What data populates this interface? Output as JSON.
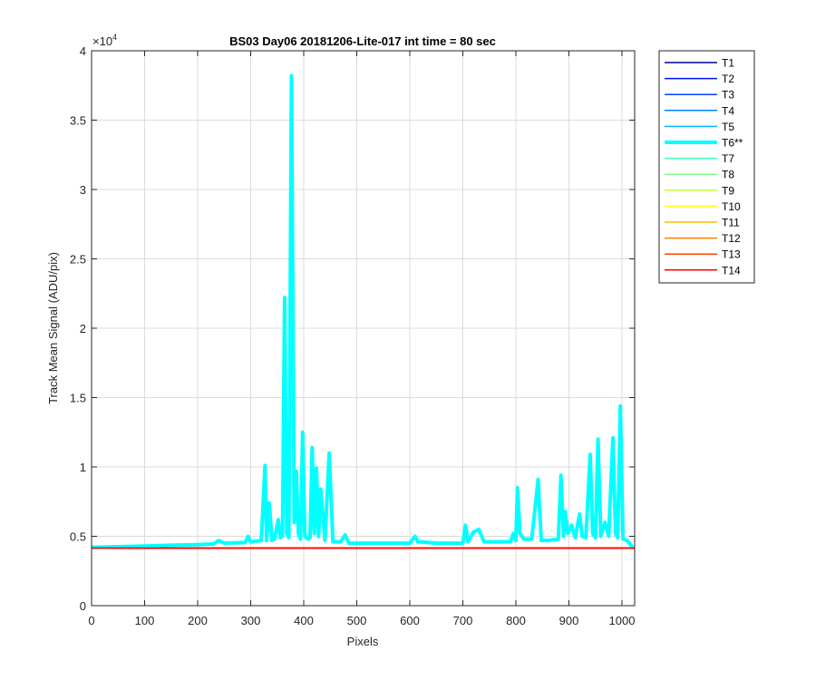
{
  "chart_data": {
    "type": "line",
    "title": "BS03 Day06 20181206-Lite-017 int time = 80 sec",
    "xlabel": "Pixels",
    "ylabel": "Track Mean Signal (ADU/pix)",
    "y_exponent_base": "×10",
    "y_exponent_power": "4",
    "xlim": [
      0,
      1024
    ],
    "ylim": [
      0,
      40000
    ],
    "x_ticks": [
      0,
      100,
      200,
      300,
      400,
      500,
      600,
      700,
      800,
      900,
      1000
    ],
    "y_ticks": [
      0,
      5000,
      10000,
      15000,
      20000,
      25000,
      30000,
      35000,
      40000
    ],
    "x_tick_labels": [
      "0",
      "100",
      "200",
      "300",
      "400",
      "500",
      "600",
      "700",
      "800",
      "900",
      "1000"
    ],
    "y_tick_labels": [
      "0",
      "0.5",
      "1",
      "1.5",
      "2",
      "2.5",
      "3",
      "3.5",
      "4"
    ],
    "grid": true,
    "legend_position": "outside-top-right",
    "baseline_value": 4150,
    "series": [
      {
        "name": "T1",
        "color": "#00008f"
      },
      {
        "name": "T2",
        "color": "#0010ff"
      },
      {
        "name": "T3",
        "color": "#0040ff"
      },
      {
        "name": "T4",
        "color": "#0080ff"
      },
      {
        "name": "T5",
        "color": "#00bfff"
      },
      {
        "name": "T6**",
        "color": "#00ffff",
        "highlighted": true,
        "x": [
          0,
          50,
          100,
          150,
          200,
          230,
          240,
          250,
          290,
          295,
          300,
          320,
          327,
          330,
          335,
          340,
          345,
          352,
          356,
          360,
          364,
          368,
          372,
          377,
          382,
          386,
          390,
          394,
          398,
          402,
          408,
          412,
          416,
          420,
          424,
          428,
          432,
          440,
          448,
          455,
          470,
          478,
          485,
          500,
          550,
          600,
          610,
          615,
          620,
          650,
          700,
          705,
          710,
          720,
          730,
          740,
          760,
          790,
          795,
          800,
          803,
          808,
          815,
          830,
          842,
          848,
          860,
          880,
          885,
          890,
          893,
          898,
          905,
          912,
          920,
          925,
          932,
          940,
          945,
          950,
          955,
          960,
          968,
          975,
          983,
          988,
          992,
          997,
          1002,
          1010,
          1020
        ],
        "y": [
          4200,
          4250,
          4300,
          4350,
          4400,
          4450,
          4700,
          4500,
          4550,
          5000,
          4600,
          4700,
          10100,
          4700,
          7400,
          4700,
          4800,
          6200,
          4900,
          5000,
          22200,
          5200,
          4900,
          38200,
          6000,
          9700,
          5200,
          4800,
          12500,
          5000,
          4800,
          4900,
          11400,
          5200,
          9900,
          5000,
          8400,
          4700,
          11000,
          4600,
          4600,
          5100,
          4500,
          4500,
          4500,
          4500,
          5000,
          4600,
          4600,
          4500,
          4500,
          5800,
          4600,
          5300,
          5500,
          4600,
          4600,
          4600,
          5200,
          4700,
          8500,
          5200,
          4800,
          4800,
          9100,
          4700,
          4700,
          4800,
          9400,
          5000,
          6800,
          5200,
          5800,
          4900,
          6600,
          5000,
          4900,
          10900,
          5200,
          4900,
          12000,
          5000,
          6000,
          5000,
          12100,
          5200,
          4900,
          14400,
          4800,
          4700,
          4200
        ]
      },
      {
        "name": "T7",
        "color": "#40ffbf"
      },
      {
        "name": "T8",
        "color": "#80ff80"
      },
      {
        "name": "T9",
        "color": "#bfff40"
      },
      {
        "name": "T10",
        "color": "#ffff00"
      },
      {
        "name": "T11",
        "color": "#ffbf00"
      },
      {
        "name": "T12",
        "color": "#ff8000"
      },
      {
        "name": "T13",
        "color": "#ff4000"
      },
      {
        "name": "T14",
        "color": "#ff0000"
      }
    ]
  }
}
